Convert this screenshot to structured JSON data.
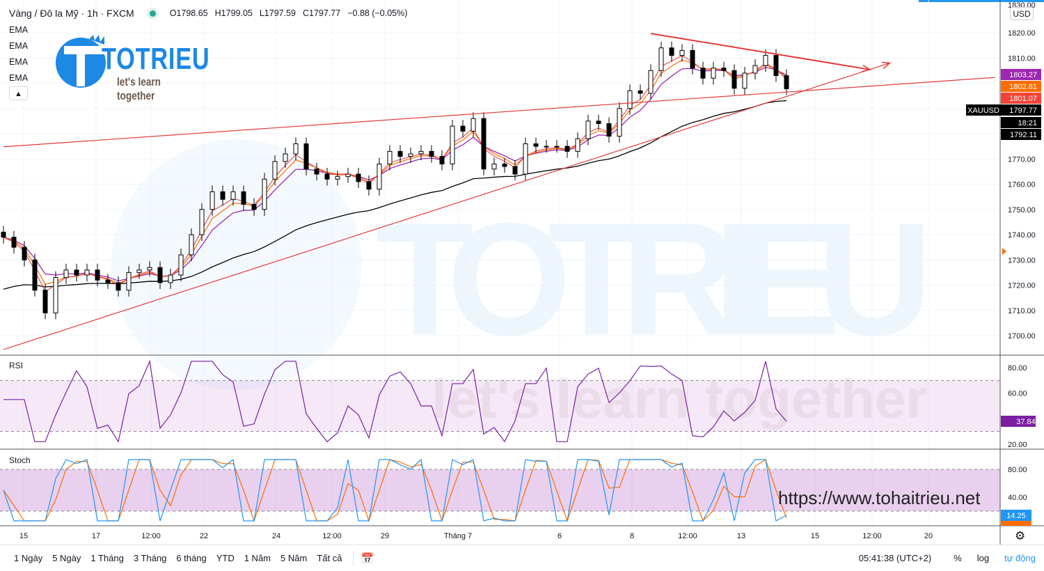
{
  "header": {
    "symbol": "Vàng / Đô la Mỹ · 1h · FXCM",
    "open": "O1798.65",
    "high": "H1799.05",
    "low": "L1797.59",
    "close": "C1797.77",
    "change": "−0.88 (−0.05%)"
  },
  "indicators": [
    "EMA",
    "EMA",
    "EMA",
    "EMA"
  ],
  "collapse_icon": "chevron-up-icon",
  "logo": {
    "name": "TOTRIEU",
    "tagline": "let's learn together"
  },
  "watermark_url": "https://www.tohaitrieu.net",
  "currency": "USD",
  "colors": {
    "up": "#000000",
    "ema_fast": "#e53935",
    "ema_mid": "#ff6d00",
    "ema_slow": "#9c27b0",
    "ema_long": "#000000",
    "trend": "#e53935",
    "rsi": "#7b1fa2",
    "stoch_k": "#2196f3",
    "stoch_d": "#ff6d00",
    "accent": "#2196f3"
  },
  "chart_data": {
    "type": "candlestick",
    "closes": [
      1739,
      1735,
      1730,
      1718,
      1709,
      1723,
      1726,
      1724,
      1726,
      1722,
      1721,
      1718,
      1725,
      1726,
      1727,
      1721,
      1724,
      1732,
      1740,
      1750,
      1757,
      1754,
      1757,
      1752,
      1750,
      1762,
      1769,
      1772,
      1776,
      1766,
      1764,
      1762,
      1763,
      1764,
      1761,
      1758,
      1768,
      1773,
      1771,
      1772,
      1773,
      1771,
      1768,
      1783,
      1781,
      1786,
      1766,
      1768,
      1767,
      1764,
      1776,
      1775,
      1775,
      1775,
      1773,
      1778,
      1785,
      1784,
      1779,
      1790,
      1797,
      1796,
      1805,
      1814,
      1811,
      1813,
      1806,
      1802,
      1806,
      1805,
      1798,
      1804,
      1807,
      1811,
      1803,
      1797.77
    ],
    "ylim": [
      1695,
      1830
    ],
    "y_ticks": [
      "1820.00",
      "1810.00",
      "1770.00",
      "1760.00",
      "1750.00",
      "1740.00",
      "1730.00",
      "1720.00",
      "1710.00",
      "1700.00"
    ],
    "x_ticks": [
      "15",
      "17",
      "12:00",
      "22",
      "24",
      "12:00",
      "29",
      "Tháng 7",
      "6",
      "8",
      "12:00",
      "13",
      "15",
      "12:00",
      "20"
    ],
    "price_labels": [
      {
        "name": "ema-slow",
        "value": "1803.27",
        "color": "#9c27b0"
      },
      {
        "name": "ema-mid",
        "value": "1802.81",
        "color": "#ff6d00"
      },
      {
        "name": "ema-fast",
        "value": "1801.07",
        "color": "#f44336"
      },
      {
        "name": "last-price",
        "value": "1797.77",
        "tag": "XAUUSD",
        "color": "#000000"
      },
      {
        "name": "countdown",
        "value": "18:21",
        "color": "#000000"
      },
      {
        "name": "ema-long",
        "value": "1792.11",
        "color": "#000000"
      }
    ],
    "trendlines": [
      {
        "from": [
          0,
          1774.8
        ],
        "to": [
          95,
          1802.3
        ],
        "arrow": false
      },
      {
        "from": [
          0,
          1694.5
        ],
        "to": [
          84.9,
          1808
        ],
        "arrow": true
      },
      {
        "from": [
          62,
          1819.7
        ],
        "to": [
          83,
          1805.4
        ],
        "arrow": true
      }
    ],
    "rsi": {
      "label": "RSI",
      "last": "37.84",
      "ticks": [
        "80.00",
        "60.00",
        "20.00"
      ],
      "bands": [
        30,
        70
      ]
    },
    "stoch": {
      "label": "Stoch",
      "last": "14.25",
      "ticks": [
        "80.00",
        "40.00"
      ],
      "bands": [
        20,
        80
      ]
    }
  },
  "timeframes": [
    "1 Ngày",
    "5 Ngày",
    "1 Tháng",
    "3 Tháng",
    "6 tháng",
    "YTD",
    "1 Năm",
    "5 Năm",
    "Tất cả"
  ],
  "footer": {
    "time": "05:41:38 (UTC+2)",
    "percent": "%",
    "log": "log",
    "auto": "tự động"
  }
}
